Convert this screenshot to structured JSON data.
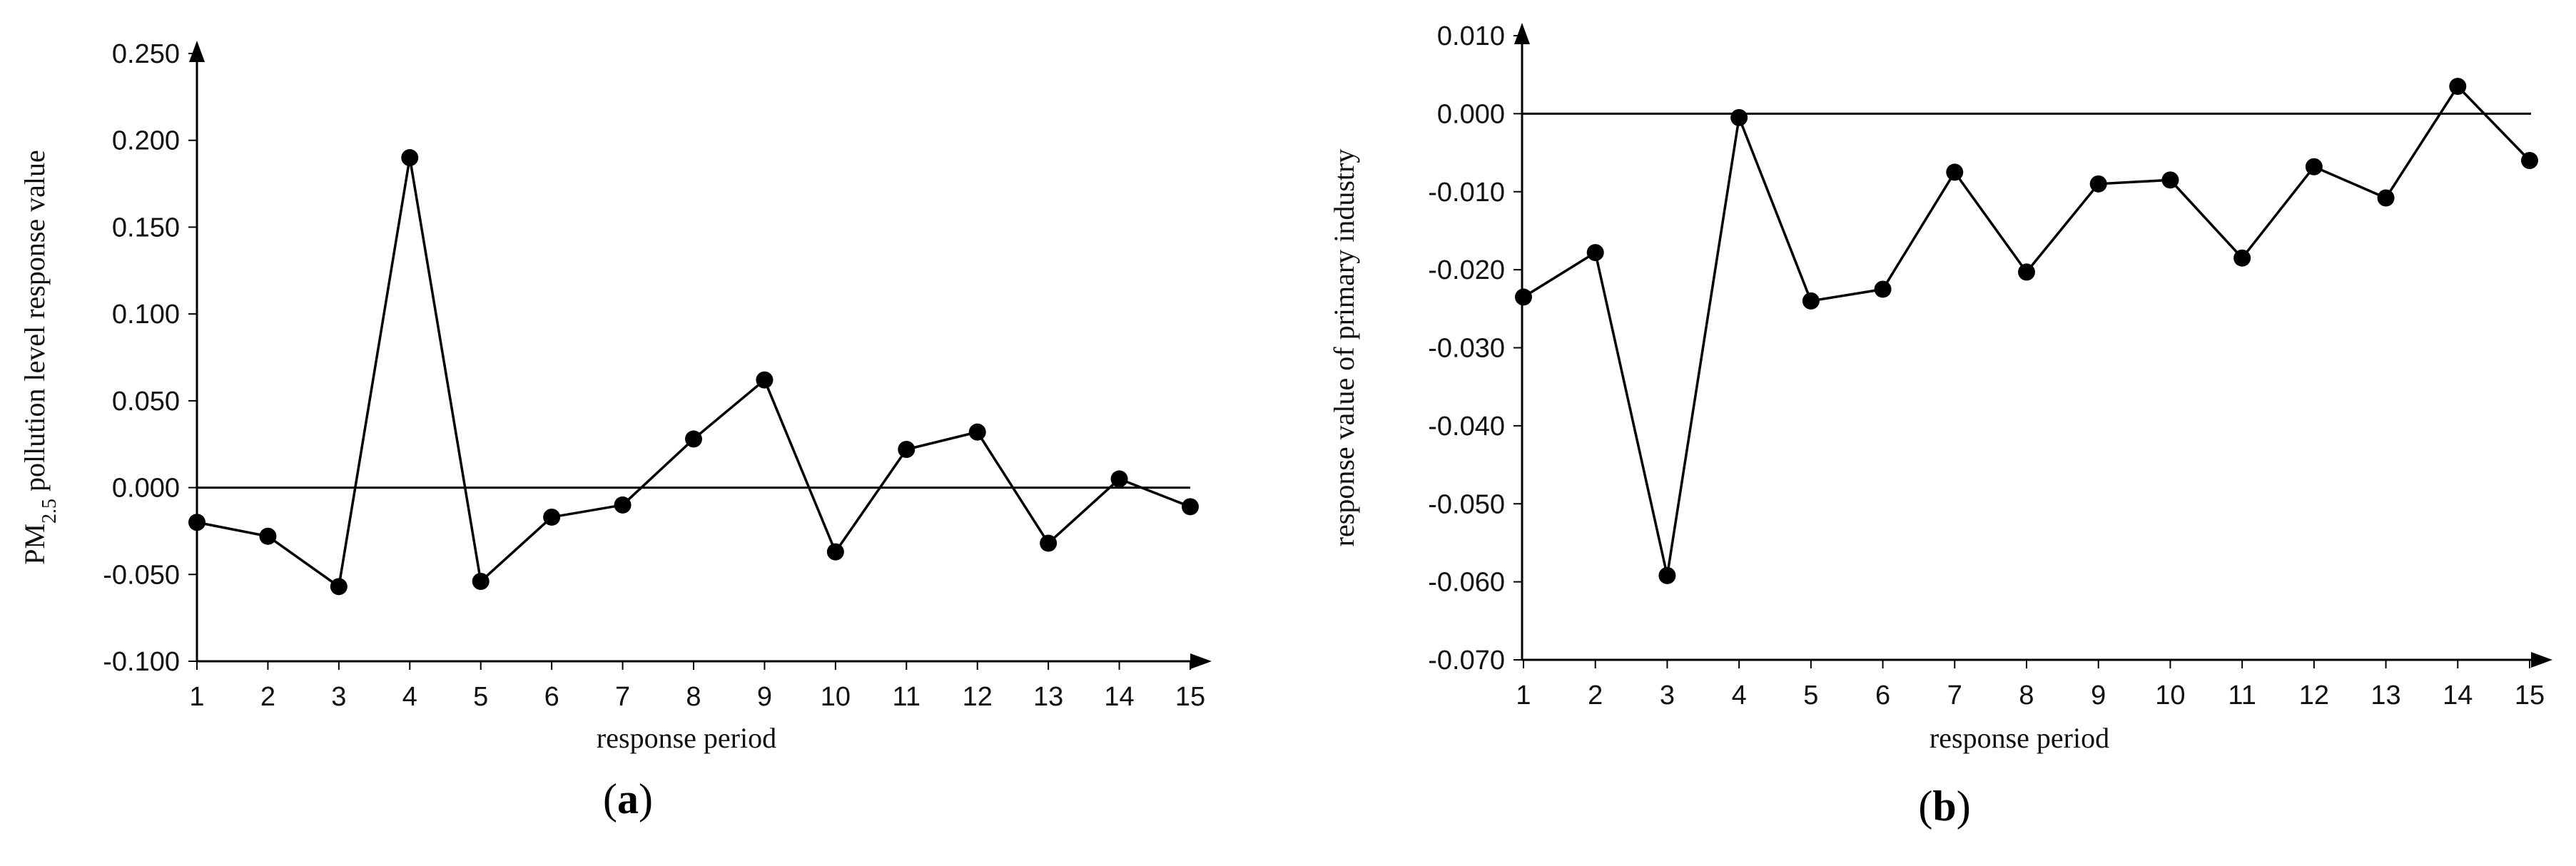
{
  "chart_data": [
    {
      "type": "line",
      "panel_label": "a",
      "x": [
        1,
        2,
        3,
        4,
        5,
        6,
        7,
        8,
        9,
        10,
        11,
        12,
        13,
        14,
        15
      ],
      "values": [
        -0.02,
        -0.028,
        -0.057,
        0.19,
        -0.054,
        -0.017,
        -0.01,
        0.028,
        0.062,
        -0.037,
        0.022,
        0.032,
        -0.032,
        0.005,
        -0.011
      ],
      "ylabel": {
        "main": "PM",
        "sub": "2.5",
        "rest": " pollution level response value"
      },
      "xlabel": "response period",
      "ylim": [
        -0.1,
        0.25
      ],
      "yticks": [
        "0.250",
        "0.200",
        "0.150",
        "0.100",
        "0.050",
        "0.000",
        "-0.050",
        "-0.100"
      ],
      "xticks": [
        "1",
        "2",
        "3",
        "4",
        "5",
        "6",
        "7",
        "8",
        "9",
        "10",
        "11",
        "12",
        "13",
        "14",
        "15"
      ],
      "reference_line": 0,
      "grid": false,
      "legend": "none",
      "line_color": "#000000"
    },
    {
      "type": "line",
      "panel_label": "b",
      "x": [
        1,
        2,
        3,
        4,
        5,
        6,
        7,
        8,
        9,
        10,
        11,
        12,
        13,
        14,
        15
      ],
      "values": [
        -0.0235,
        -0.0178,
        -0.0592,
        -0.0005,
        -0.024,
        -0.0225,
        -0.0075,
        -0.0203,
        -0.009,
        -0.0085,
        -0.0185,
        -0.0068,
        -0.0108,
        0.0035,
        -0.006
      ],
      "ylabel": "response value of primary industry",
      "xlabel": "response period",
      "ylim": [
        -0.07,
        0.01
      ],
      "yticks": [
        "0.010",
        "0.000",
        "-0.010",
        "-0.020",
        "-0.030",
        "-0.040",
        "-0.050",
        "-0.060",
        "-0.070"
      ],
      "xticks": [
        "1",
        "2",
        "3",
        "4",
        "5",
        "6",
        "7",
        "8",
        "9",
        "10",
        "11",
        "12",
        "13",
        "14",
        "15"
      ],
      "reference_line": 0,
      "grid": false,
      "legend": "none",
      "line_color": "#000000"
    }
  ]
}
